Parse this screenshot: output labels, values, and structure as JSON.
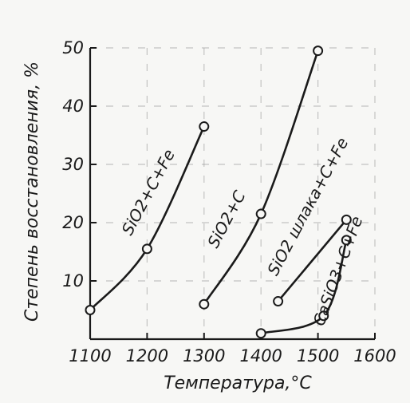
{
  "chart_data": {
    "type": "line",
    "xlabel": "Температура,°С",
    "ylabel": "Степень восстановления, %",
    "xlim": [
      1100,
      1600
    ],
    "ylim": [
      0,
      50
    ],
    "x_ticks": [
      "1100",
      "1200",
      "1300",
      "1400",
      "1500",
      "1600"
    ],
    "y_ticks": [
      "10",
      "20",
      "30",
      "40",
      "50"
    ],
    "grid": true,
    "legend": "inline labels",
    "series": [
      {
        "name": "SiO2+C+Fe",
        "x": [
          1100,
          1200,
          1300
        ],
        "y": [
          5,
          15.5,
          36.5
        ]
      },
      {
        "name": "SiO2+C",
        "x": [
          1300,
          1400,
          1500
        ],
        "y": [
          6,
          21.5,
          49.5
        ]
      },
      {
        "name": "SiO2 шлака+C+Fe",
        "x": [
          1430,
          1550
        ],
        "y": [
          6.5,
          20.5
        ]
      },
      {
        "name": "CaSiO3+C+Fe",
        "x": [
          1400,
          1510,
          1550
        ],
        "y": [
          1,
          4,
          17
        ]
      }
    ]
  }
}
